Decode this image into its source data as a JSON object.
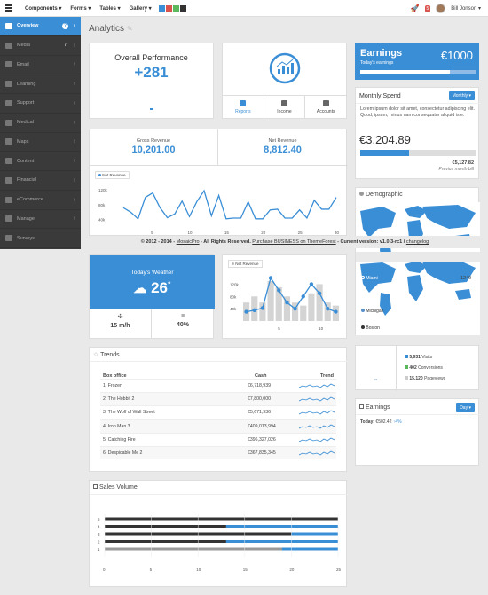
{
  "topbar": {
    "nav": [
      "Components",
      "Forms",
      "Tables",
      "Gallery"
    ],
    "swatches": [
      "#3a8ed6",
      "#d9534f",
      "#5cb85c",
      "#333333"
    ],
    "notif_count": "5",
    "user": "Bill Jonson"
  },
  "sidebar": {
    "items": [
      {
        "label": "Overview",
        "icon": "dashboard-icon"
      },
      {
        "label": "Media",
        "icon": "image-icon"
      },
      {
        "label": "Email",
        "icon": "mail-icon"
      },
      {
        "label": "Learning",
        "icon": "graduation-icon"
      },
      {
        "label": "Support",
        "icon": "support-icon"
      },
      {
        "label": "Medical",
        "icon": "medical-icon"
      },
      {
        "label": "Maps",
        "icon": "map-pin-icon"
      },
      {
        "label": "Content",
        "icon": "document-icon"
      },
      {
        "label": "Financial",
        "icon": "bank-icon"
      },
      {
        "label": "eCommerce",
        "icon": "cart-icon"
      },
      {
        "label": "Manage",
        "icon": "wrench-icon"
      },
      {
        "label": "Surveys",
        "icon": "chart-icon"
      }
    ],
    "media_count": "7",
    "help": "?"
  },
  "page": {
    "title": "Analytics"
  },
  "overall": {
    "title": "Overall Performance",
    "value": "+281"
  },
  "reports_tabs": [
    "Reports",
    "Income",
    "Accounts"
  ],
  "earnings": {
    "title": "Earnings",
    "sub": "Today's earnings",
    "value": "€1000",
    "progress": 0.78
  },
  "monthly": {
    "title": "Monthly Spend",
    "button": "Monthly",
    "text": "Lorem ipsum dolor sit amet, consectetur adipiscing elit. Quod, ipsum, minus nam consequatur aliquid iste.",
    "value": "€3,204.89",
    "progress": 0.42,
    "prev_value": "€5,127.82",
    "prev_label": "Previus month bill"
  },
  "revenue": {
    "gross_label": "Gross Revenue",
    "gross_value": "10,201.00",
    "net_label": "Net Revenue",
    "net_value": "8,812.40",
    "legend": "Net Revenue",
    "y_ticks": [
      "120k",
      "80k",
      "40k"
    ],
    "x_ticks": [
      "5",
      "10",
      "15",
      "20",
      "25",
      "30"
    ]
  },
  "demographic": {
    "title": "Demographic",
    "labels": [
      "Miami",
      "Michigan",
      "Boston"
    ],
    "count": "1249"
  },
  "footer": {
    "pre": "© 2012 - 2014 - ",
    "brand": "MosaicPro",
    "mid": " - All Rights Reserved. ",
    "link": "Purchase BUSINESS on ThemeForest",
    "ver": " - Current version: v1.0.3-rc1 / ",
    "changelog": "changelog"
  },
  "weather": {
    "title": "Today's Weather",
    "temp": "26",
    "deg": "°",
    "wind": "15 m/h",
    "humidity": "40%"
  },
  "net_revenue_small": {
    "legend": "Net Revenue",
    "y_ticks": [
      "120k",
      "80k",
      "40k"
    ],
    "x_ticks": [
      "5",
      "10"
    ]
  },
  "stats": {
    "visits": "5,931",
    "visits_label": "Visits",
    "conv": "402",
    "conv_label": "Conversions",
    "views": "15,120",
    "views_label": "Pageviews",
    "dash": "--"
  },
  "earnings2": {
    "title": "Earnings",
    "button": "Day",
    "today_label": "Today:",
    "today_value": "€502.42",
    "change": "4%"
  },
  "trends": {
    "title": "Trends",
    "headers": [
      "Box office",
      "Cash",
      "Trend"
    ],
    "rows": [
      {
        "name": "1. Frozen",
        "cash": "€6,718,939"
      },
      {
        "name": "2. The Hobbit 2",
        "cash": "€7,800,000"
      },
      {
        "name": "3. The Wolf of Wall Street",
        "cash": "€5,671,936"
      },
      {
        "name": "4. Iron Man 3",
        "cash": "€409,013,994"
      },
      {
        "name": "5. Catching Fire",
        "cash": "€396,327,026"
      },
      {
        "name": "6. Despicable Me 2",
        "cash": "€367,835,345"
      }
    ]
  },
  "sales": {
    "title": "Sales Volume",
    "y_ticks": [
      "5",
      "4",
      "3",
      "2",
      "1"
    ],
    "x_ticks": [
      "0",
      "5",
      "10",
      "15",
      "20",
      "25"
    ]
  },
  "chart_data": [
    {
      "type": "line",
      "legend": "Net Revenue",
      "x": [
        1,
        2,
        3,
        4,
        5,
        6,
        7,
        8,
        9,
        10,
        11,
        12,
        13,
        14,
        15,
        16,
        17,
        18,
        19,
        20,
        21,
        22,
        23,
        24,
        25,
        26,
        27,
        28,
        29,
        30
      ],
      "values": [
        72,
        60,
        42,
        100,
        112,
        72,
        45,
        55,
        90,
        48,
        88,
        118,
        50,
        105,
        42,
        44,
        44,
        88,
        42,
        42,
        66,
        68,
        44,
        44,
        66,
        44,
        92,
        68,
        68,
        100
      ],
      "ylim": [
        20,
        130
      ],
      "xlim": [
        1,
        30
      ]
    },
    {
      "type": "bar",
      "legend": "Net Revenue",
      "values": [
        60,
        80,
        60,
        130,
        110,
        80,
        60,
        50,
        90,
        120,
        60,
        50
      ],
      "line": [
        30,
        35,
        42,
        140,
        100,
        60,
        40,
        80,
        120,
        90,
        40,
        30
      ],
      "ylim": [
        0,
        150
      ]
    },
    {
      "type": "bar",
      "orientation": "horizontal",
      "categories": [
        "5",
        "4",
        "3",
        "2",
        "1"
      ],
      "series": [
        {
          "values": [
            25,
            25,
            25,
            25,
            25
          ]
        },
        {
          "values": [
            0,
            13,
            20,
            13,
            10
          ]
        },
        {
          "values": [
            0,
            0,
            0,
            0,
            19
          ]
        }
      ],
      "xlim": [
        0,
        25
      ]
    }
  ]
}
